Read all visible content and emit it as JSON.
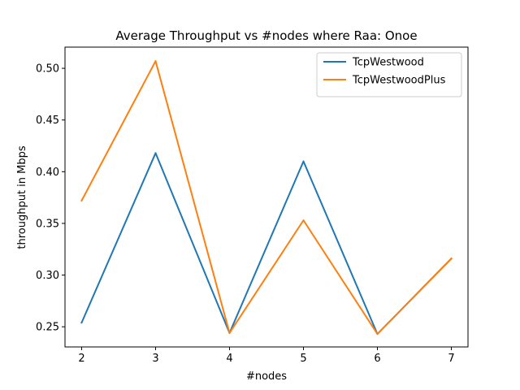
{
  "chart_data": {
    "type": "line",
    "title": "Average Throughput vs #nodes where Raa: Onoe",
    "xlabel": "#nodes",
    "ylabel": "throughput in Mbps",
    "x": [
      2,
      3,
      4,
      5,
      6,
      7
    ],
    "xticks": [
      "2",
      "3",
      "4",
      "5",
      "6",
      "7"
    ],
    "yticks": [
      "0.25",
      "0.30",
      "0.35",
      "0.40",
      "0.45",
      "0.50"
    ],
    "xlim": [
      1.775,
      7.225
    ],
    "ylim": [
      0.2305,
      0.5205
    ],
    "grid": false,
    "legend_position": "top-right",
    "series": [
      {
        "name": "TcpWestwood",
        "color": "#1f77b4",
        "values": [
          0.254,
          0.418,
          0.244,
          0.41,
          0.243,
          0.316
        ]
      },
      {
        "name": "TcpWestwoodPlus",
        "color": "#ff7f0e",
        "values": [
          0.372,
          0.507,
          0.244,
          0.353,
          0.243,
          0.316
        ]
      }
    ]
  }
}
